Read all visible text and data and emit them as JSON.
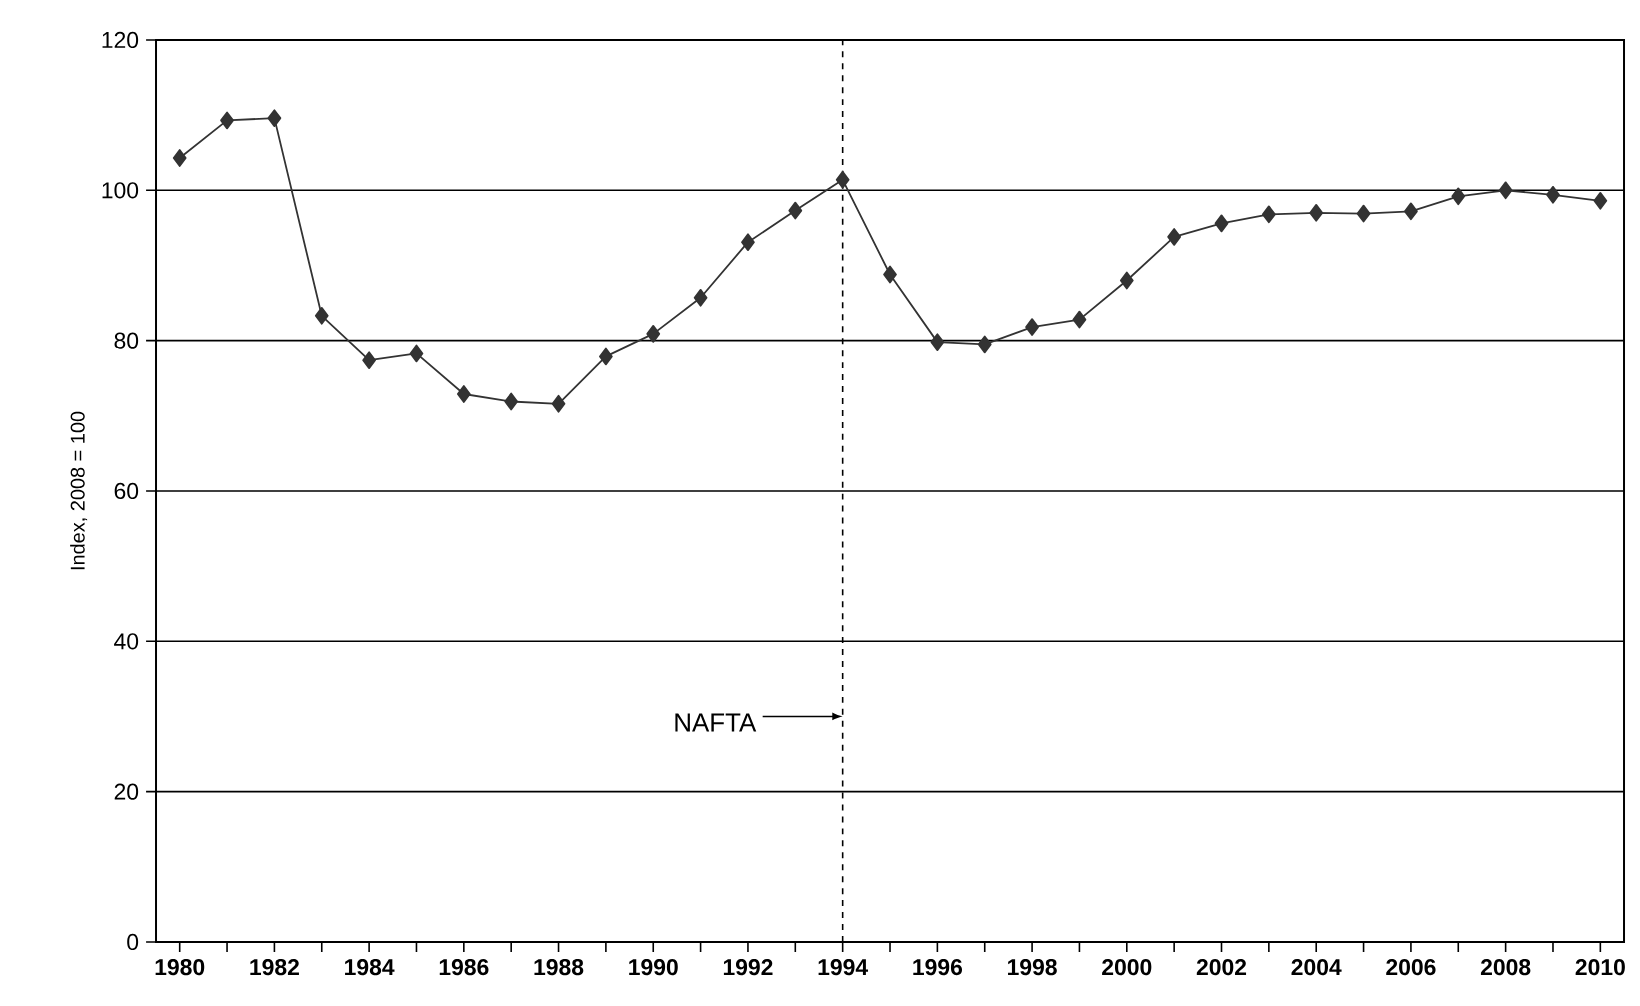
{
  "chart_data": {
    "type": "line",
    "ylabel": "Index, 2008 = 100",
    "x": [
      1980,
      1981,
      1982,
      1983,
      1984,
      1985,
      1986,
      1987,
      1988,
      1989,
      1990,
      1991,
      1992,
      1993,
      1994,
      1995,
      1996,
      1997,
      1998,
      1999,
      2000,
      2001,
      2002,
      2003,
      2004,
      2005,
      2006,
      2007,
      2008,
      2009,
      2010
    ],
    "series": [
      {
        "color": "#333333",
        "values": [
          104.3,
          109.3,
          109.6,
          83.3,
          77.4,
          78.3,
          72.9,
          71.9,
          71.6,
          77.9,
          80.9,
          85.7,
          93.1,
          97.3,
          101.4,
          88.8,
          79.8,
          79.5,
          81.8,
          82.8,
          88.0,
          93.8,
          95.6,
          96.8,
          97.0,
          96.9,
          97.2,
          99.2,
          100,
          99.4,
          98.6
        ]
      }
    ],
    "xlim": [
      1979.5,
      2010.5
    ],
    "xticks": [
      1980,
      {
        "value": 1981,
        "label": null
      },
      1982,
      {
        "value": 1983,
        "label": null
      },
      1984,
      {
        "value": 1985,
        "label": null
      },
      1986,
      {
        "value": 1987,
        "label": null
      },
      1988,
      {
        "value": 1989,
        "label": null
      },
      1990,
      {
        "value": 1991,
        "label": null
      },
      1992,
      {
        "value": 1993,
        "label": null
      },
      1994,
      {
        "value": 1995,
        "label": null
      },
      1996,
      {
        "value": 1997,
        "label": null
      },
      1998,
      {
        "value": 1999,
        "label": null
      },
      2000,
      {
        "value": 2001,
        "label": null
      },
      2002,
      {
        "value": 2003,
        "label": null
      },
      2004,
      {
        "value": 2005,
        "label": null
      },
      2006,
      {
        "value": 2007,
        "label": null
      },
      2008,
      {
        "value": 2009,
        "label": null
      },
      2010
    ],
    "ylim": [
      0,
      120
    ],
    "yticks": [
      0,
      20,
      40,
      60,
      80,
      100,
      120
    ],
    "grid": "y",
    "marker": "diamond",
    "line_style": "solid",
    "ref_lines": [
      {
        "axis": "x",
        "value": 1994,
        "label": "NAFTA",
        "line_style": "dashed",
        "color": "#000000"
      }
    ]
  }
}
